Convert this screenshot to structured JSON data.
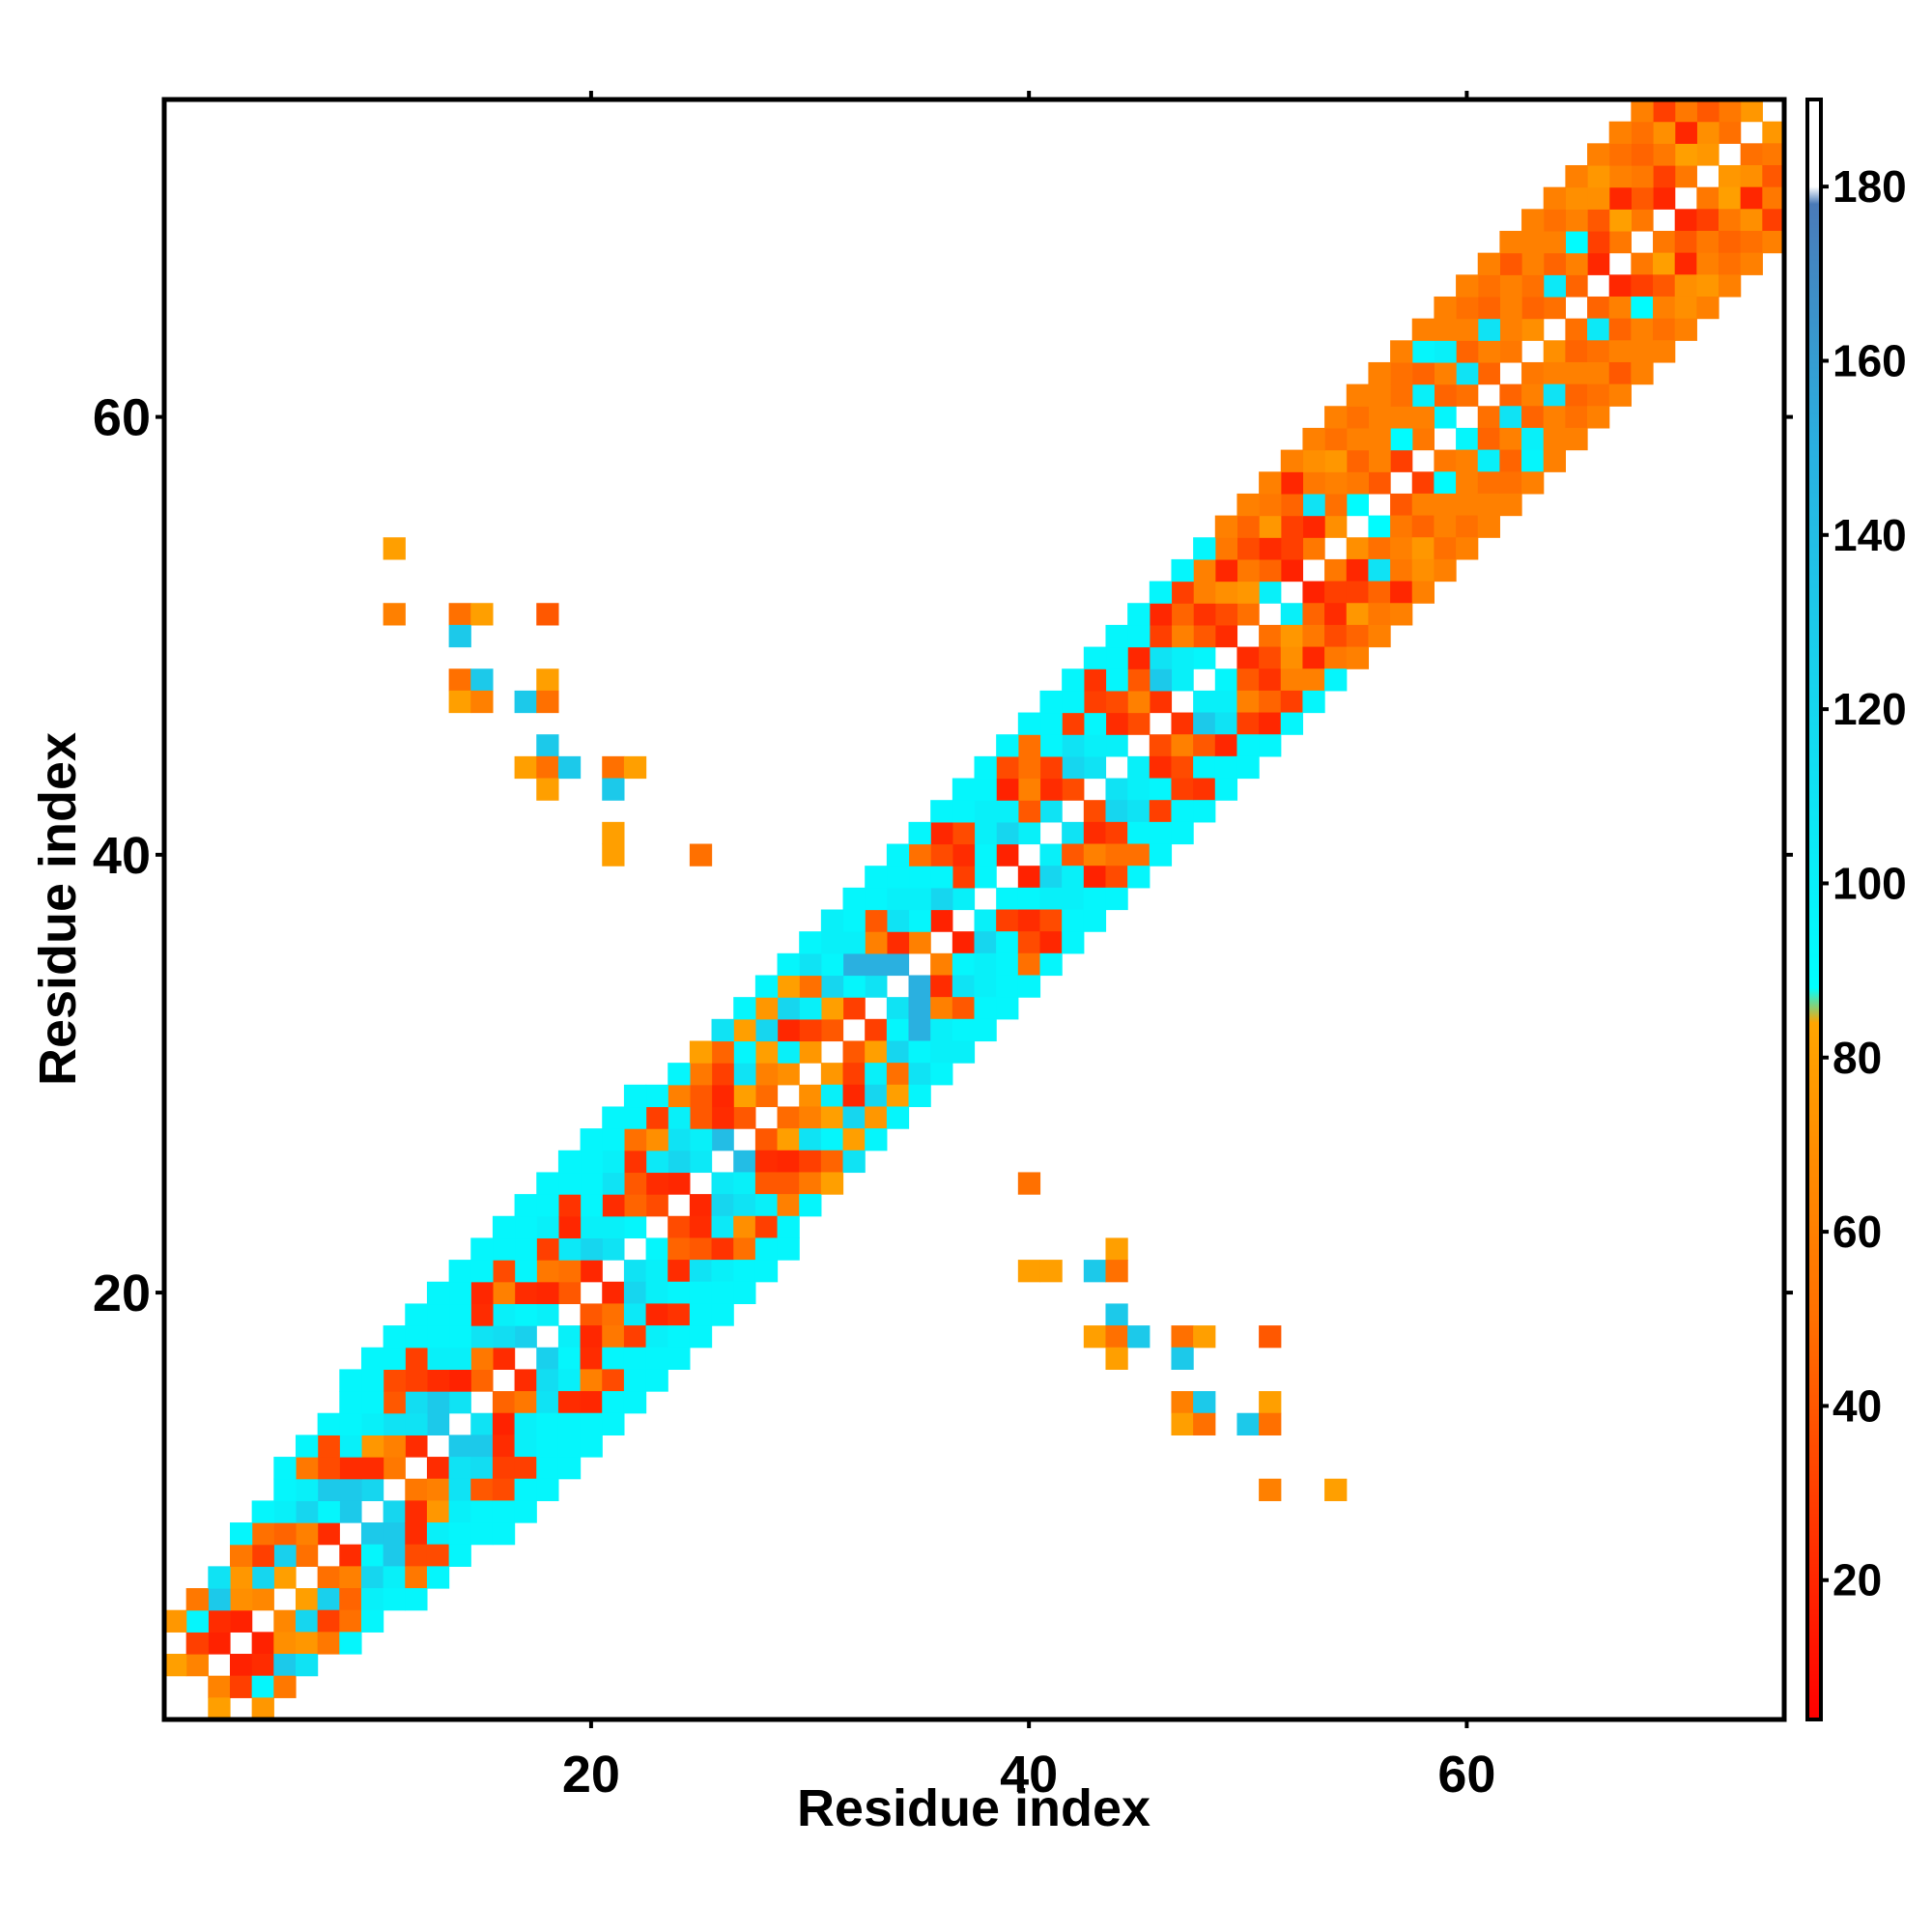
{
  "chart_data": {
    "type": "heatmap",
    "title": "",
    "xlabel": "Residue index",
    "ylabel": "Residue index",
    "xlim": [
      0.5,
      74.5
    ],
    "ylim": [
      0.5,
      74.5
    ],
    "xticks": [
      20,
      40,
      60
    ],
    "yticks": [
      20,
      40,
      60
    ],
    "xtick_labels": [
      "20",
      "40",
      "60"
    ],
    "ytick_labels": [
      "20",
      "40",
      "60"
    ],
    "grid": false,
    "legend": "none",
    "colorbar": {
      "placement": "right",
      "range": [
        4,
        190
      ],
      "ticks": [
        20,
        40,
        60,
        80,
        100,
        120,
        140,
        160,
        180
      ],
      "tick_labels": [
        "20",
        "40",
        "60",
        "80",
        "100",
        "120",
        "140",
        "160",
        "180"
      ],
      "stops": [
        {
          "value": 4,
          "color": "#ff0000"
        },
        {
          "value": 50,
          "color": "#ff7000"
        },
        {
          "value": 84,
          "color": "#ffa500"
        },
        {
          "value": 88,
          "color": "#00ffff"
        },
        {
          "value": 150,
          "color": "#2ab0e0"
        },
        {
          "value": 178,
          "color": "#4a7ab8"
        },
        {
          "value": 180,
          "color": "#ffffff"
        },
        {
          "value": 190,
          "color": "#ffffff"
        }
      ]
    },
    "note_symmetric": true,
    "band_lower_offsets": [
      {
        "offset": 1,
        "values": [
          null,
          62,
          18,
          18,
          65,
          80,
          50,
          22,
          130,
          120,
          55,
          22,
          130,
          110,
          45,
          22,
          125,
          100,
          40,
          20,
          110,
          95,
          35,
          20,
          105,
          140,
          40,
          48,
          70,
          75,
          40,
          30,
          110,
          150,
          60,
          18,
          100,
          95,
          18,
          100,
          110,
          35,
          110,
          100,
          35,
          25,
          100,
          95,
          22,
          50,
          100,
          18,
          55,
          70,
          90,
          40,
          30,
          55,
          95,
          50,
          45,
          55,
          70,
          50,
          45,
          20,
          55,
          55,
          20,
          55,
          75,
          50,
          75
        ]
      },
      {
        "offset": 2,
        "values": [
          80,
          30,
          22,
          70,
          120,
          125,
          60,
          95,
          130,
          22,
          60,
          110,
          130,
          18,
          55,
          115,
          95,
          20,
          50,
          120,
          100,
          45,
          22,
          120,
          100,
          22,
          80,
          60,
          100,
          30,
          80,
          95,
          150,
          22,
          95,
          120,
          30,
          95,
          120,
          40,
          22,
          120,
          100,
          22,
          60,
          130,
          100,
          40,
          35,
          75,
          45,
          30,
          20,
          50,
          55,
          60,
          90,
          60,
          45,
          110,
          60,
          60,
          45,
          105,
          60,
          30,
          80,
          40,
          30,
          80,
          70,
          55
        ]
      },
      {
        "offset": 3,
        "values": [
          null,
          95,
          130,
          75,
          30,
          45,
          120,
          130,
          22,
          75,
          110,
          115,
          22,
          100,
          110,
          100,
          22,
          55,
          105,
          100,
          22,
          40,
          105,
          110,
          40,
          20,
          110,
          80,
          20,
          100,
          120,
          150,
          60,
          110,
          100,
          95,
          22,
          100,
          100,
          60,
          30,
          110,
          95,
          35,
          40,
          110,
          60,
          25,
          70,
          55,
          22,
          30,
          110,
          60,
          45,
          60,
          60,
          100,
          60,
          45,
          110,
          60,
          50,
          45,
          90,
          40,
          20,
          55,
          55,
          20,
          40
        ]
      },
      {
        "offset": 4,
        "values": [
          75,
          55,
          110,
          55,
          50,
          100,
          100,
          35,
          100,
          100,
          40,
          30,
          100,
          95,
          22,
          60,
          95,
          30,
          20,
          95,
          110,
          25,
          70,
          100,
          40,
          30,
          95,
          120,
          120,
          50,
          95,
          100,
          40,
          100,
          95,
          35,
          35,
          100,
          18,
          50,
          95,
          30,
          30,
          95,
          20,
          30,
          45,
          60,
          20,
          35,
          75,
          45,
          55,
          75,
          60,
          60,
          50,
          45,
          100,
          60,
          45,
          60,
          60,
          60,
          60,
          70,
          60,
          45,
          70,
          55
        ]
      },
      {
        "offset": 5,
        "values": [
          null,
          null,
          null,
          95,
          95,
          95,
          55,
          35,
          95,
          95,
          35,
          30,
          95,
          95,
          20,
          35,
          95,
          100,
          25,
          95,
          100,
          50,
          30,
          60,
          55,
          45,
          80,
          75,
          80,
          110,
          100,
          95,
          95,
          95,
          50,
          20,
          95,
          95,
          35,
          50,
          95,
          95,
          25,
          95,
          95,
          20,
          30,
          60,
          55,
          45,
          55,
          20,
          70,
          50,
          50,
          60,
          50,
          95,
          60,
          50,
          50,
          40,
          60,
          50,
          70,
          75,
          50,
          50,
          30
        ]
      },
      {
        "offset": 6,
        "values": [
          null,
          null,
          null,
          null,
          null,
          95,
          95,
          95,
          95,
          95,
          95,
          95,
          95,
          95,
          95,
          95,
          95,
          95,
          95,
          95,
          95,
          95,
          95,
          95,
          80,
          110,
          95,
          95,
          95,
          95,
          100,
          95,
          95,
          95,
          95,
          95,
          95,
          95,
          95,
          95,
          95,
          95,
          95,
          95,
          95,
          95,
          95,
          95,
          60,
          60,
          60,
          60,
          60,
          60,
          60,
          60,
          60,
          60,
          60,
          60,
          60,
          60,
          60,
          60,
          60,
          60,
          60,
          60
        ]
      },
      {
        "offset": 7,
        "values": [
          null,
          null,
          null,
          null,
          null,
          null,
          null,
          null,
          95,
          95,
          95,
          95,
          95,
          95,
          95,
          95,
          95,
          95,
          95,
          95,
          95,
          95,
          null,
          null,
          null,
          null,
          null,
          null,
          null,
          null,
          null,
          null,
          null,
          null,
          null,
          null,
          null,
          null,
          null,
          null,
          null,
          null,
          null,
          null,
          null,
          null,
          null,
          null,
          null,
          null,
          null,
          null,
          null,
          null,
          null,
          null,
          null,
          null,
          null,
          null,
          null,
          null,
          null,
          null,
          null,
          null,
          null
        ]
      }
    ],
    "off_diagonal_cells": [
      {
        "x": 11,
        "y": 54,
        "value": 80
      },
      {
        "x": 11,
        "y": 51,
        "value": 60
      },
      {
        "x": 14,
        "y": 51,
        "value": 50
      },
      {
        "x": 15,
        "y": 51,
        "value": 80
      },
      {
        "x": 18,
        "y": 51,
        "value": 40
      },
      {
        "x": 14,
        "y": 50,
        "value": 130
      },
      {
        "x": 14,
        "y": 48,
        "value": 50
      },
      {
        "x": 15,
        "y": 48,
        "value": 130
      },
      {
        "x": 18,
        "y": 48,
        "value": 80
      },
      {
        "x": 14,
        "y": 47,
        "value": 80
      },
      {
        "x": 15,
        "y": 47,
        "value": 60
      },
      {
        "x": 17,
        "y": 47,
        "value": 130
      },
      {
        "x": 18,
        "y": 47,
        "value": 50
      },
      {
        "x": 18,
        "y": 45,
        "value": 130
      },
      {
        "x": 17,
        "y": 44,
        "value": 80
      },
      {
        "x": 18,
        "y": 44,
        "value": 50
      },
      {
        "x": 19,
        "y": 44,
        "value": 130
      },
      {
        "x": 21,
        "y": 44,
        "value": 50
      },
      {
        "x": 22,
        "y": 44,
        "value": 80
      },
      {
        "x": 18,
        "y": 43,
        "value": 80
      },
      {
        "x": 21,
        "y": 43,
        "value": 130
      },
      {
        "x": 21,
        "y": 41,
        "value": 80
      },
      {
        "x": 21,
        "y": 40,
        "value": 80
      },
      {
        "x": 25,
        "y": 40,
        "value": 50
      },
      {
        "x": 40,
        "y": 25,
        "value": 50
      },
      {
        "x": 44,
        "y": 22,
        "value": 80
      },
      {
        "x": 40,
        "y": 21,
        "value": 80
      },
      {
        "x": 41,
        "y": 21,
        "value": 80
      },
      {
        "x": 43,
        "y": 21,
        "value": 130
      },
      {
        "x": 44,
        "y": 21,
        "value": 50
      },
      {
        "x": 44,
        "y": 19,
        "value": 130
      },
      {
        "x": 43,
        "y": 18,
        "value": 80
      },
      {
        "x": 44,
        "y": 18,
        "value": 50
      },
      {
        "x": 45,
        "y": 18,
        "value": 130
      },
      {
        "x": 47,
        "y": 18,
        "value": 50
      },
      {
        "x": 48,
        "y": 18,
        "value": 80
      },
      {
        "x": 51,
        "y": 18,
        "value": 40
      },
      {
        "x": 44,
        "y": 17,
        "value": 80
      },
      {
        "x": 47,
        "y": 17,
        "value": 130
      },
      {
        "x": 47,
        "y": 15,
        "value": 60
      },
      {
        "x": 48,
        "y": 15,
        "value": 130
      },
      {
        "x": 51,
        "y": 15,
        "value": 80
      },
      {
        "x": 47,
        "y": 14,
        "value": 80
      },
      {
        "x": 48,
        "y": 14,
        "value": 50
      },
      {
        "x": 50,
        "y": 14,
        "value": 130
      },
      {
        "x": 51,
        "y": 14,
        "value": 50
      },
      {
        "x": 51,
        "y": 11,
        "value": 60
      },
      {
        "x": 54,
        "y": 11,
        "value": 80
      }
    ]
  }
}
